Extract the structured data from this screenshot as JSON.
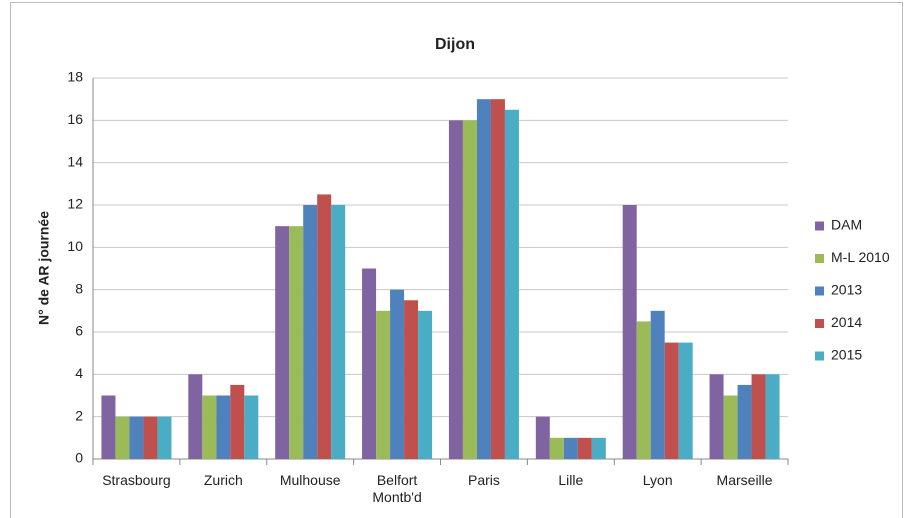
{
  "chart_data": {
    "type": "bar",
    "title": "Dijon",
    "y_label": "N° de AR journée",
    "categories": [
      "Strasbourg",
      "Zurich",
      "Mulhouse",
      "Belfort Montb'd",
      "Paris",
      "Lille",
      "Lyon",
      "Marseille"
    ],
    "series": [
      {
        "name": "DAM",
        "color": "#8064a2",
        "values": [
          3,
          4,
          11,
          9,
          16,
          2,
          12,
          4
        ]
      },
      {
        "name": "M-L 2010",
        "color": "#9bbb59",
        "values": [
          2,
          3,
          11,
          7,
          16,
          1,
          6.5,
          3
        ]
      },
      {
        "name": "2013",
        "color": "#4f81bd",
        "values": [
          2,
          3,
          12,
          8,
          17,
          1,
          7,
          3.5
        ]
      },
      {
        "name": "2014",
        "color": "#c0504d",
        "values": [
          2,
          3.5,
          12.5,
          7.5,
          17,
          1,
          5.5,
          4
        ]
      },
      {
        "name": "2015",
        "color": "#4bacc6",
        "values": [
          2,
          3,
          12,
          7,
          16.5,
          1,
          5.5,
          4
        ]
      }
    ],
    "ylim": [
      0,
      18
    ],
    "yticks": [
      0,
      2,
      4,
      6,
      8,
      10,
      12,
      14,
      16,
      18
    ],
    "grid": true,
    "legend": "right"
  }
}
